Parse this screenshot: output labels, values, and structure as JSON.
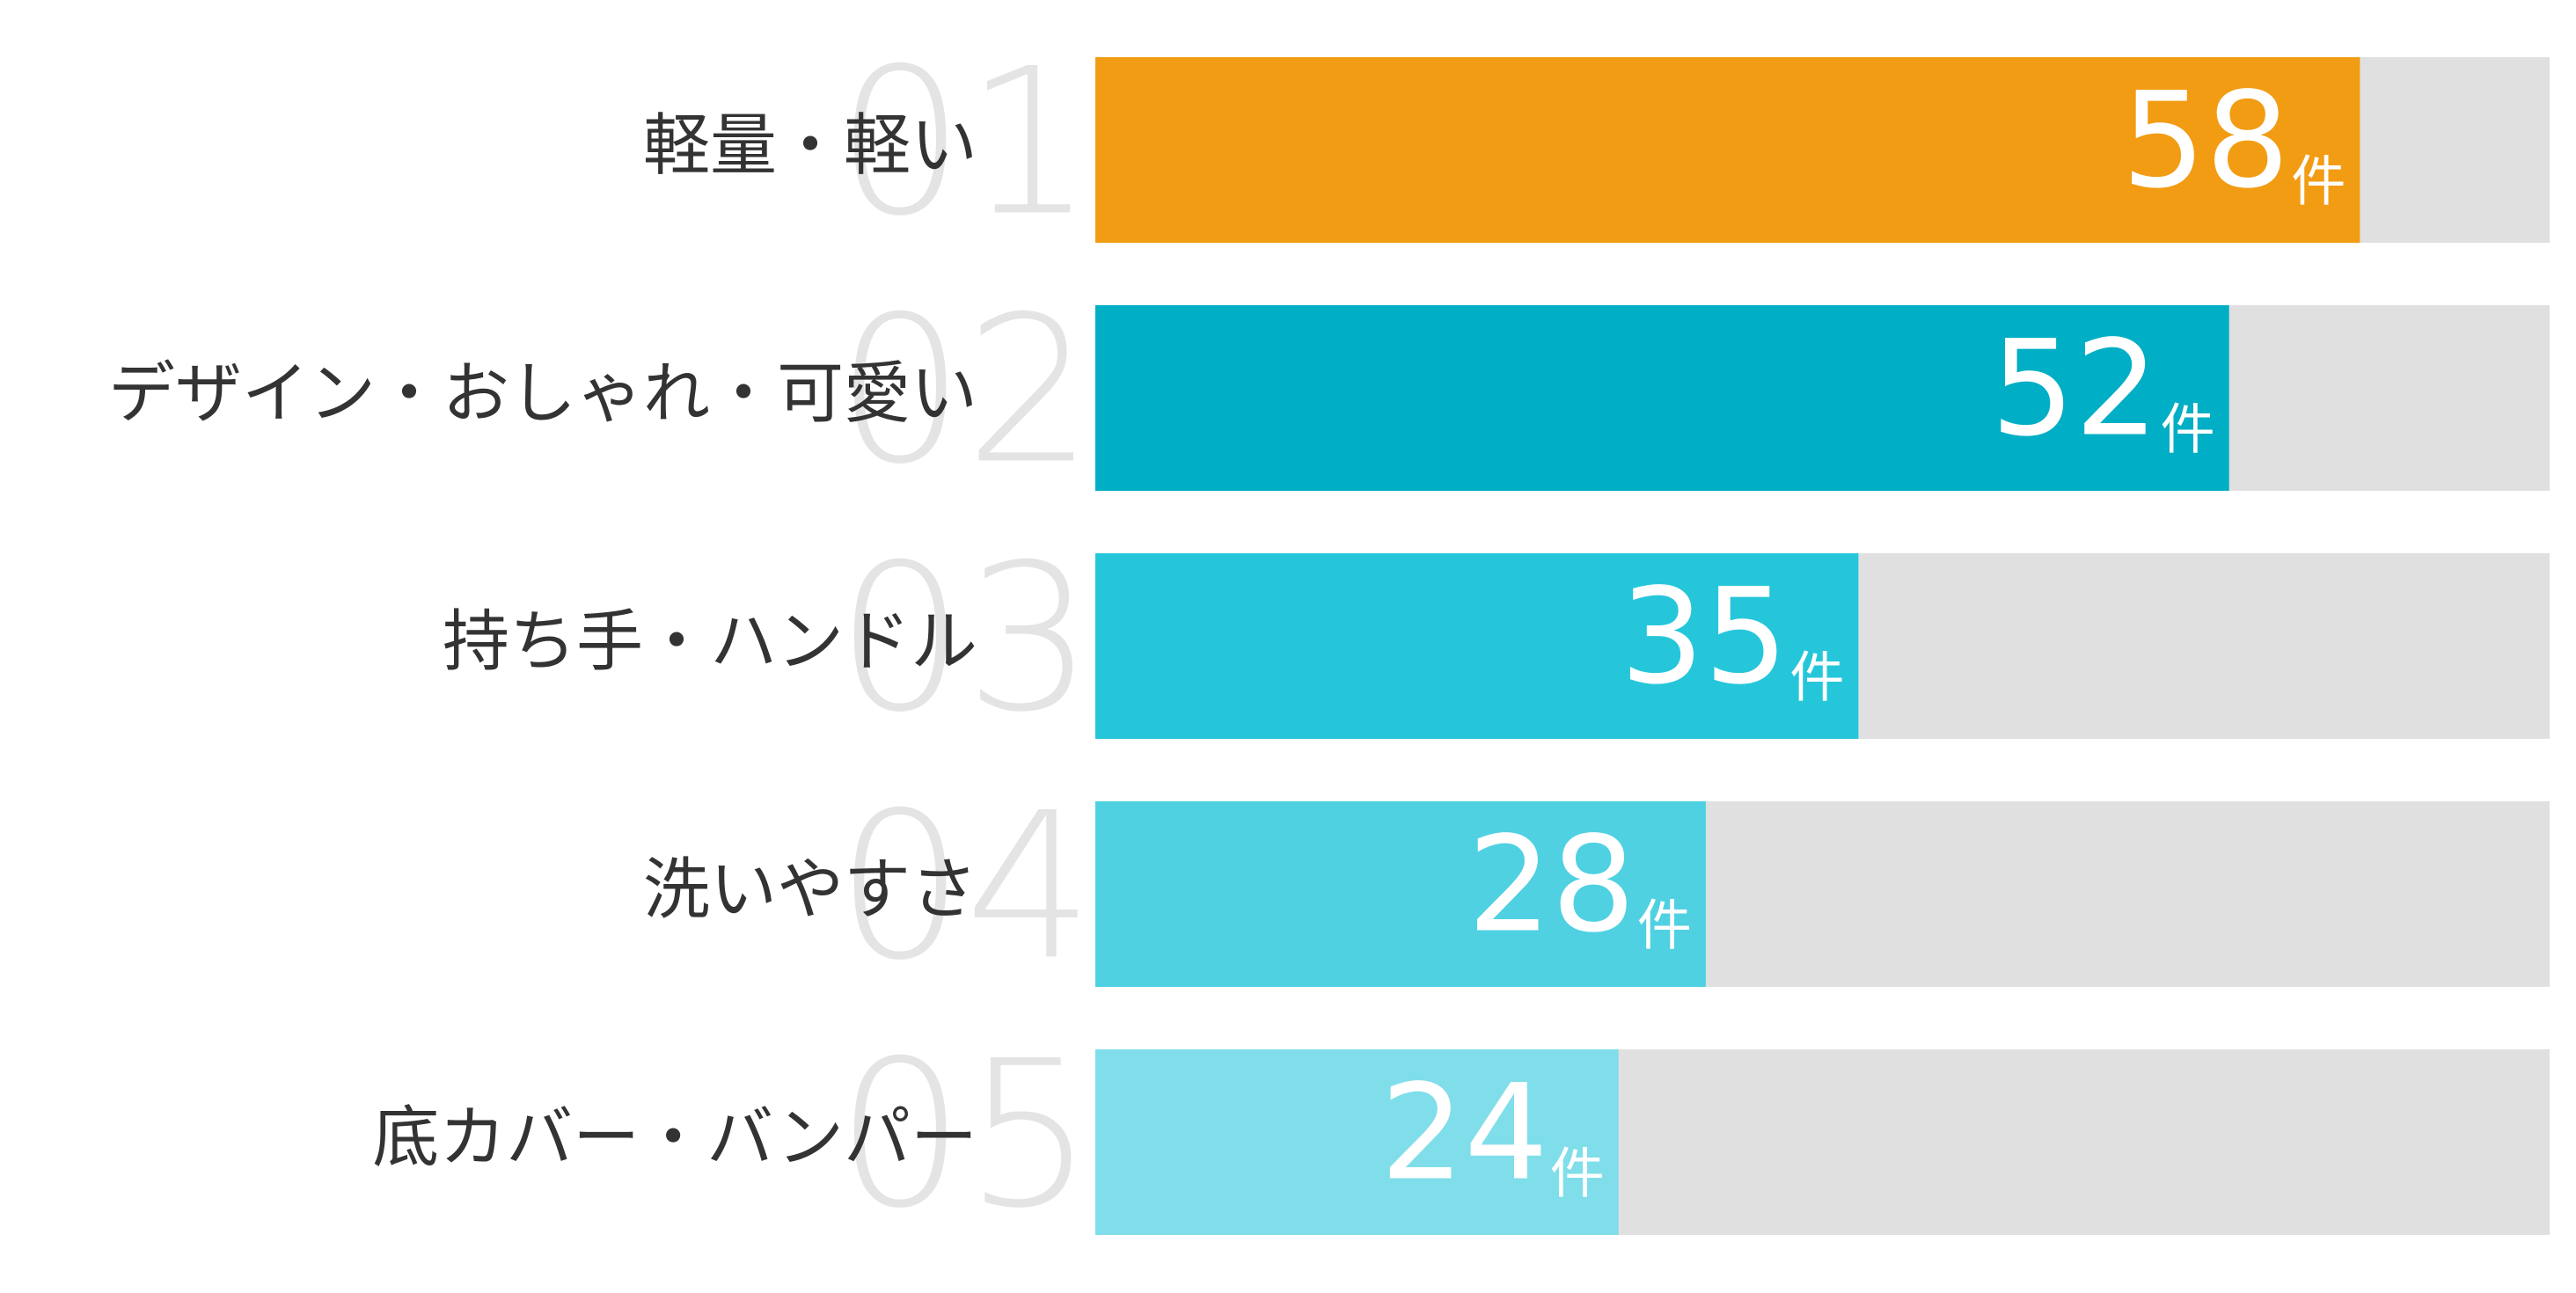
{
  "chart_data": {
    "type": "bar",
    "orientation": "horizontal",
    "categories": [
      "軽量・軽い",
      "デザイン・おしゃれ・可愛い",
      "持ち手・ハンドル",
      "洗いやすさ",
      "底カバー・バンパー"
    ],
    "ranks": [
      "01",
      "02",
      "03",
      "04",
      "05"
    ],
    "values": [
      58,
      52,
      35,
      28,
      24
    ],
    "unit": "件",
    "colors": [
      "#f29c14",
      "#00aec5",
      "#26c6da",
      "#4fd1e2",
      "#80deea"
    ],
    "track_color": "#e0e0e0",
    "xlim": [
      0,
      66.7
    ]
  }
}
